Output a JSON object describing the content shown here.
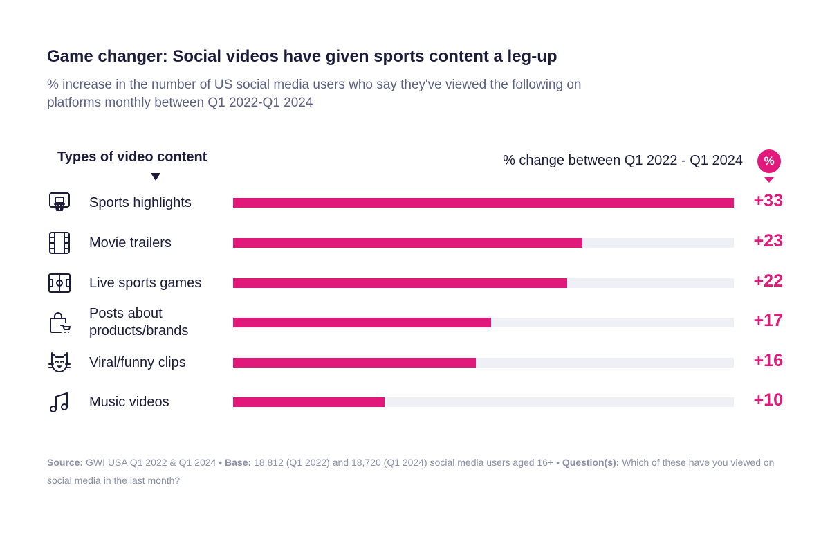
{
  "title": "Game changer: Social videos have given sports content a leg-up",
  "subtitle": "% increase in the number of US social media users who say they've viewed the following on platforms monthly between Q1 2022-Q1 2024",
  "colors": {
    "bar": "#e0197b",
    "track": "#eef0f5",
    "text": "#1b1c3a"
  },
  "chart_data": {
    "type": "bar",
    "orientation": "horizontal",
    "category_header": "Types of video content",
    "value_header": "% change between Q1 2022 - Q1 2024",
    "unit_badge": "%",
    "xlim": [
      0,
      33
    ],
    "categories": [
      "Sports highlights",
      "Movie trailers",
      "Live sports games",
      "Posts about products/brands",
      "Viral/funny clips",
      "Music videos"
    ],
    "icons": [
      "basketball-hoop-icon",
      "film-icon",
      "sports-field-icon",
      "shopping-bag-cart-icon",
      "cat-icon",
      "music-note-icon"
    ],
    "values": [
      33,
      23,
      22,
      17,
      16,
      10
    ],
    "value_labels": [
      "+33",
      "+23",
      "+22",
      "+17",
      "+16",
      "+10"
    ]
  },
  "footer": {
    "source_label": "Source:",
    "source": " GWI USA Q1 2022 & Q1 2024 • ",
    "base_label": "Base:",
    "base": " 18,812 (Q1 2022) and 18,720 (Q1 2024) social media users aged 16+ • ",
    "question_label": "Question(s):",
    "question": " Which of these have you viewed on social media in the last month?"
  }
}
